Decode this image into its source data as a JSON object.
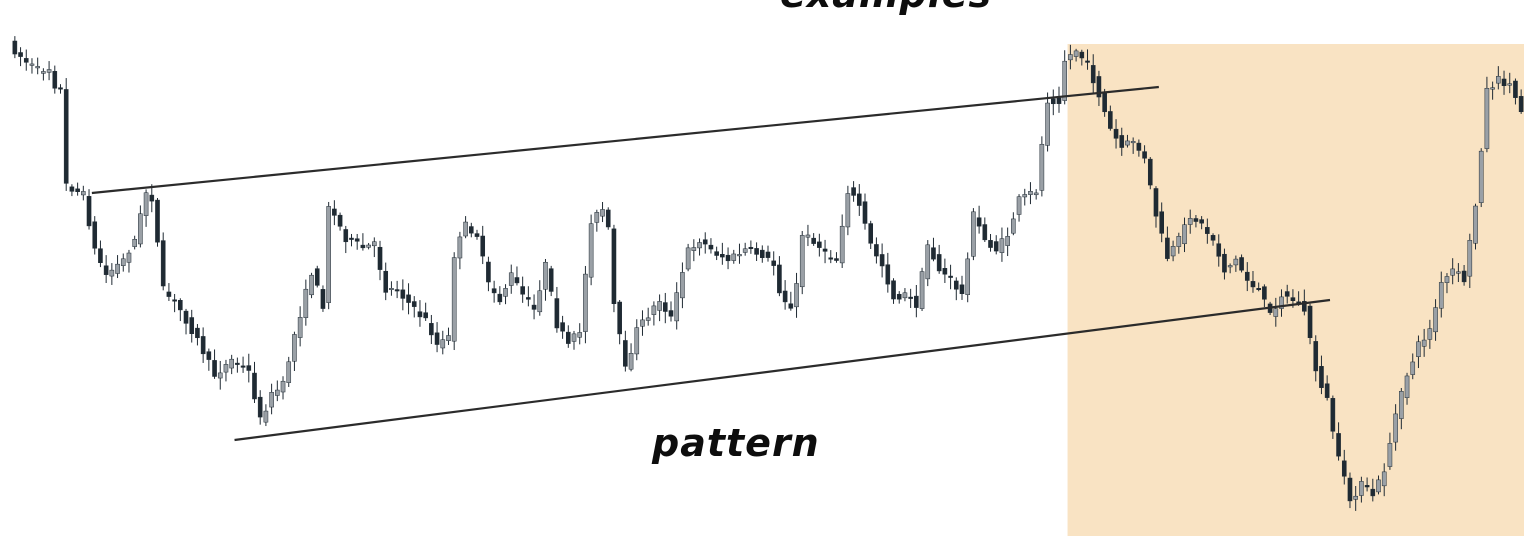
{
  "captions": {
    "top": "examples",
    "bottom": "pattern"
  },
  "colors": {
    "background": "#ffffff",
    "highlight": "#f9e3c3",
    "candle_dark": "#1f2a33",
    "candle_light": "#9aa0a6",
    "trendline": "#2b2b2b",
    "caption": "#0d0d0d"
  },
  "chart_data": {
    "type": "candlestick",
    "title": "",
    "xlabel": "",
    "ylabel": "",
    "axes_visible": false,
    "grid": false,
    "path_points": [
      [
        0,
        45
      ],
      [
        3,
        62
      ],
      [
        5,
        70
      ],
      [
        7,
        68
      ],
      [
        8,
        85
      ],
      [
        9,
        90
      ],
      [
        10,
        185
      ],
      [
        13,
        195
      ],
      [
        15,
        250
      ],
      [
        17,
        275
      ],
      [
        20,
        260
      ],
      [
        22,
        240
      ],
      [
        24,
        192
      ],
      [
        25,
        198
      ],
      [
        27,
        290
      ],
      [
        30,
        310
      ],
      [
        33,
        340
      ],
      [
        36,
        375
      ],
      [
        39,
        360
      ],
      [
        42,
        372
      ],
      [
        44,
        420
      ],
      [
        46,
        395
      ],
      [
        48,
        385
      ],
      [
        50,
        335
      ],
      [
        53,
        272
      ],
      [
        55,
        305
      ],
      [
        56,
        205
      ],
      [
        59,
        238
      ],
      [
        62,
        248
      ],
      [
        64,
        245
      ],
      [
        66,
        290
      ],
      [
        68,
        288
      ],
      [
        71,
        310
      ],
      [
        73,
        320
      ],
      [
        75,
        345
      ],
      [
        77,
        338
      ],
      [
        78,
        255
      ],
      [
        80,
        225
      ],
      [
        82,
        235
      ],
      [
        84,
        285
      ],
      [
        86,
        300
      ],
      [
        88,
        275
      ],
      [
        90,
        295
      ],
      [
        92,
        310
      ],
      [
        94,
        265
      ],
      [
        96,
        325
      ],
      [
        98,
        345
      ],
      [
        100,
        330
      ],
      [
        102,
        220
      ],
      [
        104,
        210
      ],
      [
        105,
        230
      ],
      [
        106,
        305
      ],
      [
        108,
        370
      ],
      [
        110,
        330
      ],
      [
        112,
        315
      ],
      [
        114,
        300
      ],
      [
        116,
        318
      ],
      [
        119,
        250
      ],
      [
        121,
        240
      ],
      [
        123,
        250
      ],
      [
        126,
        260
      ],
      [
        129,
        250
      ],
      [
        132,
        255
      ],
      [
        134,
        265
      ],
      [
        135,
        290
      ],
      [
        137,
        310
      ],
      [
        138,
        285
      ],
      [
        139,
        235
      ],
      [
        141,
        240
      ],
      [
        143,
        255
      ],
      [
        145,
        260
      ],
      [
        147,
        190
      ],
      [
        149,
        205
      ],
      [
        151,
        245
      ],
      [
        153,
        265
      ],
      [
        155,
        298
      ],
      [
        157,
        295
      ],
      [
        159,
        305
      ],
      [
        161,
        245
      ],
      [
        163,
        270
      ],
      [
        165,
        280
      ],
      [
        167,
        295
      ],
      [
        169,
        215
      ],
      [
        171,
        240
      ],
      [
        173,
        250
      ],
      [
        175,
        235
      ],
      [
        177,
        200
      ],
      [
        180,
        190
      ],
      [
        182,
        100
      ],
      [
        184,
        100
      ],
      [
        185,
        60
      ],
      [
        187,
        50
      ],
      [
        189,
        65
      ],
      [
        191,
        95
      ],
      [
        193,
        130
      ],
      [
        195,
        148
      ],
      [
        197,
        140
      ],
      [
        199,
        160
      ],
      [
        201,
        215
      ],
      [
        203,
        258
      ],
      [
        205,
        240
      ],
      [
        207,
        215
      ],
      [
        209,
        225
      ],
      [
        211,
        240
      ],
      [
        213,
        270
      ],
      [
        215,
        260
      ],
      [
        217,
        280
      ],
      [
        219,
        290
      ],
      [
        221,
        315
      ],
      [
        223,
        295
      ],
      [
        225,
        300
      ],
      [
        227,
        310
      ],
      [
        229,
        370
      ],
      [
        231,
        400
      ],
      [
        233,
        460
      ],
      [
        235,
        500
      ],
      [
        237,
        485
      ],
      [
        239,
        495
      ],
      [
        241,
        470
      ],
      [
        243,
        415
      ],
      [
        245,
        375
      ],
      [
        247,
        345
      ],
      [
        249,
        330
      ],
      [
        251,
        285
      ],
      [
        253,
        270
      ],
      [
        255,
        280
      ],
      [
        257,
        205
      ],
      [
        259,
        90
      ],
      [
        261,
        80
      ],
      [
        263,
        85
      ],
      [
        265,
        110
      ]
    ],
    "trendlines": [
      {
        "name": "upper",
        "from": [
          14,
          193
        ],
        "to": [
          201,
          87
        ]
      },
      {
        "name": "lower",
        "from": [
          39,
          440
        ],
        "to": [
          231,
          300
        ]
      }
    ],
    "highlight_region": {
      "x_from": 185,
      "x_to": 266
    }
  }
}
